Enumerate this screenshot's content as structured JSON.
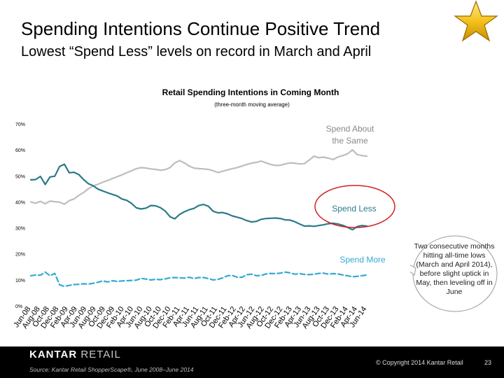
{
  "slide": {
    "title": "Spending Intentions Continue Positive Trend",
    "subtitle": "Lowest “Spend Less” levels on record in March and April",
    "callout": "Two consecutive months hitting all-time lows (March and April 2014), before slight uptick in May, then leveling off in June",
    "brand_main": "KANTAR ",
    "brand_sub": "RETAIL",
    "source": "Source: Kantar Retail ShopperScape®, June 2008–June 2014",
    "copyright": "© Copyright 2014 Kantar Retail",
    "page_number": "23",
    "star_icon": "gold-star-icon"
  },
  "chart_data": {
    "type": "line",
    "title": "Retail Spending Intentions in Coming Month",
    "subtitle": "(three-month moving average)",
    "ylim": [
      0,
      70
    ],
    "y_ticks": [
      "0%",
      "10%",
      "20%",
      "30%",
      "40%",
      "50%",
      "60%",
      "70%"
    ],
    "x_tick_labels": [
      "Jun-08",
      "Aug-08",
      "Oct-08",
      "Dec-08",
      "Feb-09",
      "Apr-09",
      "Jun-09",
      "Aug-09",
      "Oct-09",
      "Dec-09",
      "Feb-10",
      "Apr-10",
      "Jun-10",
      "Aug-10",
      "Oct-10",
      "Dec-10",
      "Feb-11",
      "Apr-11",
      "Jun-11",
      "Aug-11",
      "Oct-11",
      "Dec-11",
      "Feb-12",
      "Apr-12",
      "Jun-12",
      "Aug-12",
      "Oct-12",
      "Dec-12",
      "Feb-13",
      "Apr-13",
      "Jun-13",
      "Aug-13",
      "Oct-13",
      "Dec-13",
      "Feb-14",
      "Apr-14",
      "Jun-14"
    ],
    "grid": false,
    "series": [
      {
        "name": "Spend About the Same",
        "color": "#bdbdbd",
        "values": [
          40.0,
          39.5,
          40.2,
          39.3,
          40.3,
          40.1,
          39.9,
          39.1,
          40.5,
          41.1,
          42.5,
          43.6,
          45.1,
          46.1,
          46.8,
          47.6,
          48.2,
          49.0,
          49.7,
          50.4,
          51.2,
          52.0,
          52.8,
          53.2,
          53.0,
          52.7,
          52.5,
          52.2,
          52.4,
          53.2,
          55.0,
          55.9,
          55.0,
          53.8,
          53.0,
          52.8,
          52.7,
          52.5,
          52.0,
          51.3,
          51.8,
          52.3,
          52.8,
          53.2,
          53.8,
          54.4,
          54.9,
          55.2,
          55.7,
          55.0,
          54.4,
          54.0,
          54.1,
          54.6,
          55.0,
          54.9,
          54.6,
          54.7,
          56.1,
          57.6,
          57.0,
          57.2,
          56.8,
          56.3,
          57.3,
          57.8,
          58.5,
          60.0,
          58.2,
          57.8,
          57.6
        ]
      },
      {
        "name": "Spend Less",
        "color": "#2b7a89",
        "values": [
          48.5,
          48.6,
          49.8,
          46.7,
          49.6,
          49.9,
          53.6,
          54.5,
          51.2,
          51.4,
          50.5,
          48.6,
          47.0,
          46.2,
          44.9,
          44.2,
          43.5,
          42.9,
          42.3,
          41.1,
          40.6,
          39.4,
          37.7,
          37.3,
          37.6,
          38.6,
          38.5,
          37.8,
          36.5,
          34.3,
          33.5,
          35.2,
          36.2,
          37.0,
          37.5,
          38.6,
          39.0,
          38.3,
          36.4,
          35.8,
          35.9,
          35.4,
          34.6,
          34.1,
          33.6,
          32.8,
          32.3,
          32.5,
          33.3,
          33.6,
          33.7,
          33.8,
          33.6,
          33.1,
          33.0,
          32.4,
          31.5,
          30.7,
          30.8,
          30.6,
          30.9,
          31.2,
          31.6,
          31.8,
          31.5,
          31.0,
          30.2,
          29.3,
          30.5,
          30.9,
          30.7
        ]
      },
      {
        "name": "Spend More",
        "color": "#35a9d2",
        "values": [
          11.6,
          11.9,
          11.8,
          13.0,
          11.6,
          12.5,
          8.1,
          7.5,
          7.9,
          8.2,
          8.3,
          8.5,
          8.4,
          8.7,
          9.1,
          9.6,
          9.2,
          9.7,
          9.4,
          9.6,
          9.7,
          9.8,
          9.9,
          10.6,
          10.3,
          10.0,
          10.2,
          10.1,
          10.4,
          10.8,
          10.9,
          10.8,
          10.7,
          11.0,
          10.5,
          10.9,
          10.9,
          10.5,
          10.0,
          10.2,
          10.8,
          11.6,
          11.7,
          11.0,
          11.0,
          12.0,
          12.2,
          11.6,
          11.7,
          12.3,
          12.5,
          12.4,
          12.6,
          13.0,
          12.7,
          12.2,
          12.4,
          12.1,
          12.0,
          12.2,
          12.5,
          12.6,
          12.2,
          12.4,
          12.3,
          11.9,
          11.6,
          11.2,
          11.4,
          11.6,
          11.9
        ]
      }
    ],
    "labels": {
      "spend_same": "Spend About the Same",
      "spend_less": "Spend Less",
      "spend_more": "Spend More"
    }
  }
}
